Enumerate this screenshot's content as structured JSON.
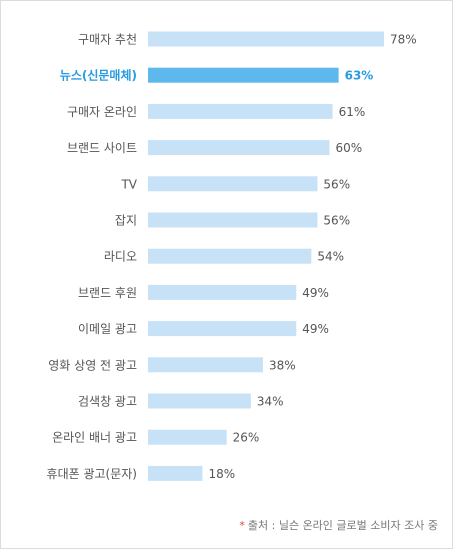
{
  "chart_data": {
    "type": "bar",
    "orientation": "horizontal",
    "categories": [
      "구매자 추천",
      "뉴스(신문매체)",
      "구매자 온라인",
      "브랜드 사이트",
      "TV",
      "잡지",
      "라디오",
      "브랜드 후원",
      "이메일 광고",
      "영화 상영 전 광고",
      "검색창 광고",
      "온라인 배너 광고",
      "휴대폰 광고(문자)"
    ],
    "values": [
      78,
      63,
      61,
      60,
      56,
      56,
      54,
      49,
      49,
      38,
      34,
      26,
      18
    ],
    "value_labels": [
      "78%",
      "63%",
      "61%",
      "60%",
      "56%",
      "56%",
      "54%",
      "49%",
      "49%",
      "38%",
      "34%",
      "26%",
      "18%"
    ],
    "highlight_index": 1,
    "xlim": [
      0,
      100
    ],
    "grid": false,
    "legend": "none"
  },
  "colors": {
    "bar": "#c7e2f7",
    "bar_highlight": "#5db8ee",
    "label": "#555555",
    "label_highlight": "#2a9be0",
    "value": "#555555",
    "note_mark": "#e0453c"
  },
  "footnote": {
    "mark": "*",
    "text": "출처 : 닐슨 온라인 글로벌 소비자 조사 중"
  }
}
